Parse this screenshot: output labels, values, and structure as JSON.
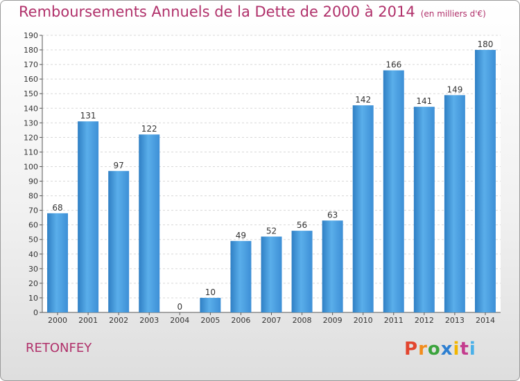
{
  "chart_data": {
    "type": "bar",
    "title": "Remboursements Annuels de la Dette de 2000 à 2014",
    "subtitle": "(en milliers d'€)",
    "categories": [
      "2000",
      "2001",
      "2002",
      "2003",
      "2004",
      "2005",
      "2006",
      "2007",
      "2008",
      "2009",
      "2010",
      "2011",
      "2012",
      "2013",
      "2014"
    ],
    "values": [
      68,
      131,
      97,
      122,
      0,
      10,
      49,
      52,
      56,
      63,
      142,
      166,
      141,
      149,
      180
    ],
    "ylim": [
      0,
      190
    ],
    "ytick_step": 10,
    "grid": true,
    "bar_color": "#4a9ee0"
  },
  "footer": {
    "town": "RETONFEY",
    "brand": "Proxiti",
    "brand_colors": [
      "#e2452f",
      "#f28c1c",
      "#3aa33c",
      "#2d7fd1",
      "#f2b600",
      "#c43c8e",
      "#4ab0e8"
    ]
  }
}
